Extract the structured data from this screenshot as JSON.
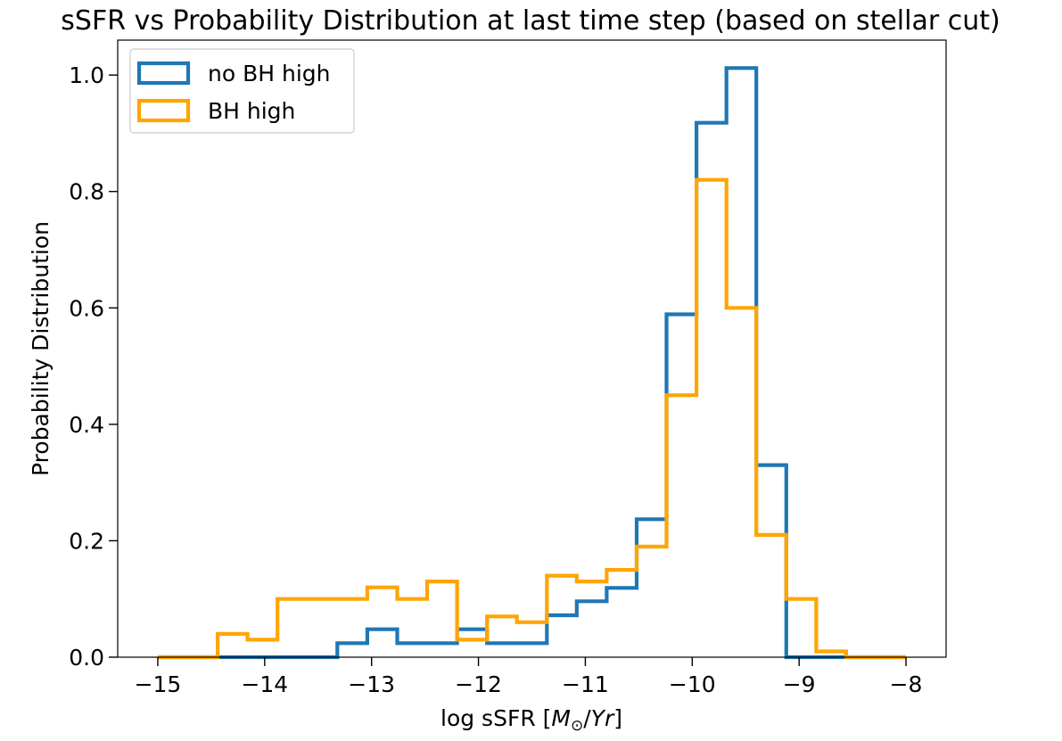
{
  "chart_data": {
    "type": "histogram",
    "title": "sSFR vs Probability Distribution at last time step (based on stellar cut)",
    "xlabel": {
      "prefix": "log sSFR [",
      "math_m": "M",
      "math_sub": "⊙",
      "math_slash": "/",
      "math_yr": "Yr",
      "suffix": "]"
    },
    "ylabel": "Probability Distribution",
    "xlim": [
      -15.375,
      -7.625
    ],
    "ylim": [
      0,
      1.06
    ],
    "x_ticks": [
      {
        "value": -15,
        "label": "−15"
      },
      {
        "value": -14,
        "label": "−14"
      },
      {
        "value": -13,
        "label": "−13"
      },
      {
        "value": -12,
        "label": "−12"
      },
      {
        "value": -11,
        "label": "−11"
      },
      {
        "value": -10,
        "label": "−10"
      },
      {
        "value": -9,
        "label": "−9"
      },
      {
        "value": -8,
        "label": "−8"
      }
    ],
    "y_ticks": [
      {
        "value": 0.0,
        "label": "0.0"
      },
      {
        "value": 0.2,
        "label": "0.2"
      },
      {
        "value": 0.4,
        "label": "0.4"
      },
      {
        "value": 0.6,
        "label": "0.6"
      },
      {
        "value": 0.8,
        "label": "0.8"
      },
      {
        "value": 1.0,
        "label": "1.0"
      }
    ],
    "bins": {
      "start": -15,
      "end": -8,
      "count": 25
    },
    "legend_position": "top-left",
    "grid": false,
    "series": [
      {
        "name": "no BH high",
        "color": "#1f77b4",
        "values": [
          0,
          0,
          0,
          0,
          0,
          0,
          0.024,
          0.048,
          0.024,
          0.024,
          0.048,
          0.024,
          0.024,
          0.072,
          0.096,
          0.119,
          0.237,
          0.589,
          0.918,
          1.012,
          0.33,
          0,
          0,
          0,
          0
        ]
      },
      {
        "name": "BH high",
        "color": "#ffa500",
        "values": [
          0,
          0,
          0.04,
          0.03,
          0.1,
          0.1,
          0.1,
          0.12,
          0.1,
          0.13,
          0.03,
          0.07,
          0.06,
          0.14,
          0.13,
          0.15,
          0.19,
          0.45,
          0.82,
          0.6,
          0.21,
          0.1,
          0.01,
          0,
          0
        ]
      }
    ]
  }
}
